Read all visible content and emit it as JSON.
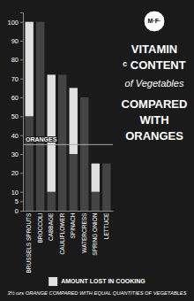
{
  "chart_data": {
    "type": "bar",
    "stacked": true,
    "title": [
      "VITAMIN",
      "ᶜ CONTENT"
    ],
    "subtitle": [
      "of Vegetables",
      "COMPARED",
      "WITH",
      "ORANGES"
    ],
    "categories": [
      "BRUSSELS SPROUTS",
      "BROCCOLI",
      "CABBAGE",
      "CAULIFLOWER",
      "SPINACH",
      "WATERCRESS",
      "SPRING ONION",
      "LETTUCE"
    ],
    "series": [
      {
        "color": "#444444",
        "values": [
          50,
          100,
          10,
          72,
          30,
          60,
          10,
          25
        ]
      },
      {
        "name": "AMOUNT LOST IN  COOKING",
        "color": "#e0e0e0",
        "values": [
          50,
          0,
          62,
          0,
          35,
          0,
          15,
          0
        ]
      }
    ],
    "annotations": [
      {
        "text": "ORANGES",
        "y": 35
      },
      {
        "text": "M·F·"
      },
      {
        "text": "3½ ozs ORANGE COMPARED WITH EQUAL QUANTITIES OF VEGETABLES"
      }
    ],
    "ylim": [
      0,
      105
    ],
    "yticks": [
      0,
      5,
      10,
      20,
      30,
      40,
      50,
      60,
      70,
      80,
      90,
      100
    ],
    "grid": false
  }
}
